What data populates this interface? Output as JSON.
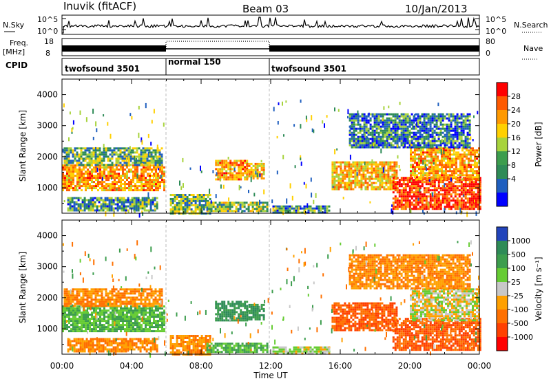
{
  "header": {
    "station": "Inuvik (fitACF)",
    "beam": "Beam 03",
    "date": "10/Jan/2013"
  },
  "strips": {
    "nsky_label": "N.Sky",
    "nsky_ticks": [
      "10^5",
      "10^0"
    ],
    "nsearch_label": "N.Search",
    "nsearch_ticks": [
      "10^5",
      "10^0"
    ],
    "freq_label_1": "Freq.",
    "freq_label_2": "[MHz]",
    "freq_ticks": [
      "18",
      "8"
    ],
    "nave_label": "Nave",
    "nave_ticks": [
      "80",
      "0"
    ],
    "cpid_label": "CPID",
    "cpid_segments": [
      {
        "name": "twofsound 3501",
        "start_h": 0,
        "end_h": 6
      },
      {
        "name": "normal 150",
        "start_h": 6,
        "end_h": 12
      },
      {
        "name": "twofsound 3501",
        "start_h": 12,
        "end_h": 24
      }
    ]
  },
  "chart_data": [
    {
      "type": "heatmap",
      "panel": "power",
      "xlabel": "Time UT",
      "ylabel": "Slant Range [km]",
      "xlim": [
        0,
        24
      ],
      "ylim": [
        180,
        4500
      ],
      "x_ticks": [
        "00:00",
        "04:00",
        "08:00",
        "12:00",
        "16:00",
        "20:00",
        "00:00"
      ],
      "y_ticks": [
        1000,
        2000,
        3000,
        4000
      ],
      "colorbar_label": "Power [dB]",
      "colorbar_ticks": [
        "28",
        "24",
        "20",
        "16",
        "12",
        "8",
        "4"
      ],
      "colorbar_colors": [
        "#ff0000",
        "#ff5a00",
        "#ff9900",
        "#ffd000",
        "#a7d33c",
        "#3c9d4d",
        "#2e8b57",
        "#1f5fbf",
        "#0000ff"
      ],
      "echo_regions": [
        {
          "t0": 0.0,
          "t1": 5.9,
          "r0": 900,
          "r1": 1750,
          "level": 22
        },
        {
          "t0": 0.1,
          "t1": 5.8,
          "r0": 1750,
          "r1": 2300,
          "level": 12
        },
        {
          "t0": 0.3,
          "t1": 5.5,
          "r0": 250,
          "r1": 700,
          "level": 10
        },
        {
          "t0": 6.2,
          "t1": 8.5,
          "r0": 200,
          "r1": 800,
          "level": 12
        },
        {
          "t0": 8.3,
          "t1": 11.8,
          "r0": 220,
          "r1": 550,
          "level": 14
        },
        {
          "t0": 8.8,
          "t1": 10.6,
          "r0": 1300,
          "r1": 1900,
          "level": 22
        },
        {
          "t0": 10.6,
          "t1": 11.6,
          "r0": 1300,
          "r1": 1800,
          "level": 20
        },
        {
          "t0": 12.1,
          "t1": 15.4,
          "r0": 180,
          "r1": 430,
          "level": 10
        },
        {
          "t0": 15.5,
          "t1": 19.3,
          "r0": 950,
          "r1": 1850,
          "level": 20
        },
        {
          "t0": 19.0,
          "t1": 24.0,
          "r0": 350,
          "r1": 1350,
          "level": 28
        },
        {
          "t0": 20.0,
          "t1": 24.0,
          "r0": 1300,
          "r1": 2300,
          "level": 22
        },
        {
          "t0": 16.5,
          "t1": 23.5,
          "r0": 2300,
          "r1": 3400,
          "level": 8
        }
      ]
    },
    {
      "type": "heatmap",
      "panel": "velocity",
      "xlabel": "Time UT",
      "ylabel": "Slant Range [km]",
      "xlim": [
        0,
        24
      ],
      "ylim": [
        180,
        4500
      ],
      "x_ticks": [
        "00:00",
        "04:00",
        "08:00",
        "12:00",
        "16:00",
        "20:00",
        "00:00"
      ],
      "y_ticks": [
        1000,
        2000,
        3000,
        4000
      ],
      "colorbar_label": "Velocity [m s⁻¹]",
      "colorbar_ticks": [
        "1000",
        "500",
        "100",
        "25",
        "-25",
        "-100",
        "-500",
        "-1000"
      ],
      "colorbar_colors": [
        "#2244bb",
        "#2e8b57",
        "#3c9d4d",
        "#66cc33",
        "#c8c8c8",
        "#ffa000",
        "#ff7000",
        "#ff4000",
        "#ff0000"
      ],
      "echo_regions": [
        {
          "t0": 0.0,
          "t1": 5.9,
          "r0": 900,
          "r1": 1750,
          "level": 100
        },
        {
          "t0": 0.1,
          "t1": 5.8,
          "r0": 1750,
          "r1": 2300,
          "level": -100
        },
        {
          "t0": 0.3,
          "t1": 5.5,
          "r0": 250,
          "r1": 700,
          "level": -100
        },
        {
          "t0": 6.2,
          "t1": 8.5,
          "r0": 200,
          "r1": 800,
          "level": -100
        },
        {
          "t0": 8.3,
          "t1": 11.8,
          "r0": 220,
          "r1": 550,
          "level": 100
        },
        {
          "t0": 8.8,
          "t1": 10.6,
          "r0": 1300,
          "r1": 1900,
          "level": 500
        },
        {
          "t0": 10.6,
          "t1": 11.6,
          "r0": 1300,
          "r1": 1800,
          "level": 500
        },
        {
          "t0": 12.1,
          "t1": 15.4,
          "r0": 180,
          "r1": 430,
          "level": 25
        },
        {
          "t0": 15.5,
          "t1": 19.3,
          "r0": 950,
          "r1": 1850,
          "level": -500
        },
        {
          "t0": 19.0,
          "t1": 24.0,
          "r0": 350,
          "r1": 1350,
          "level": -500
        },
        {
          "t0": 20.0,
          "t1": 24.0,
          "r0": 1300,
          "r1": 2300,
          "level": 0
        },
        {
          "t0": 16.5,
          "t1": 23.5,
          "r0": 2300,
          "r1": 3400,
          "level": -100
        }
      ]
    }
  ]
}
